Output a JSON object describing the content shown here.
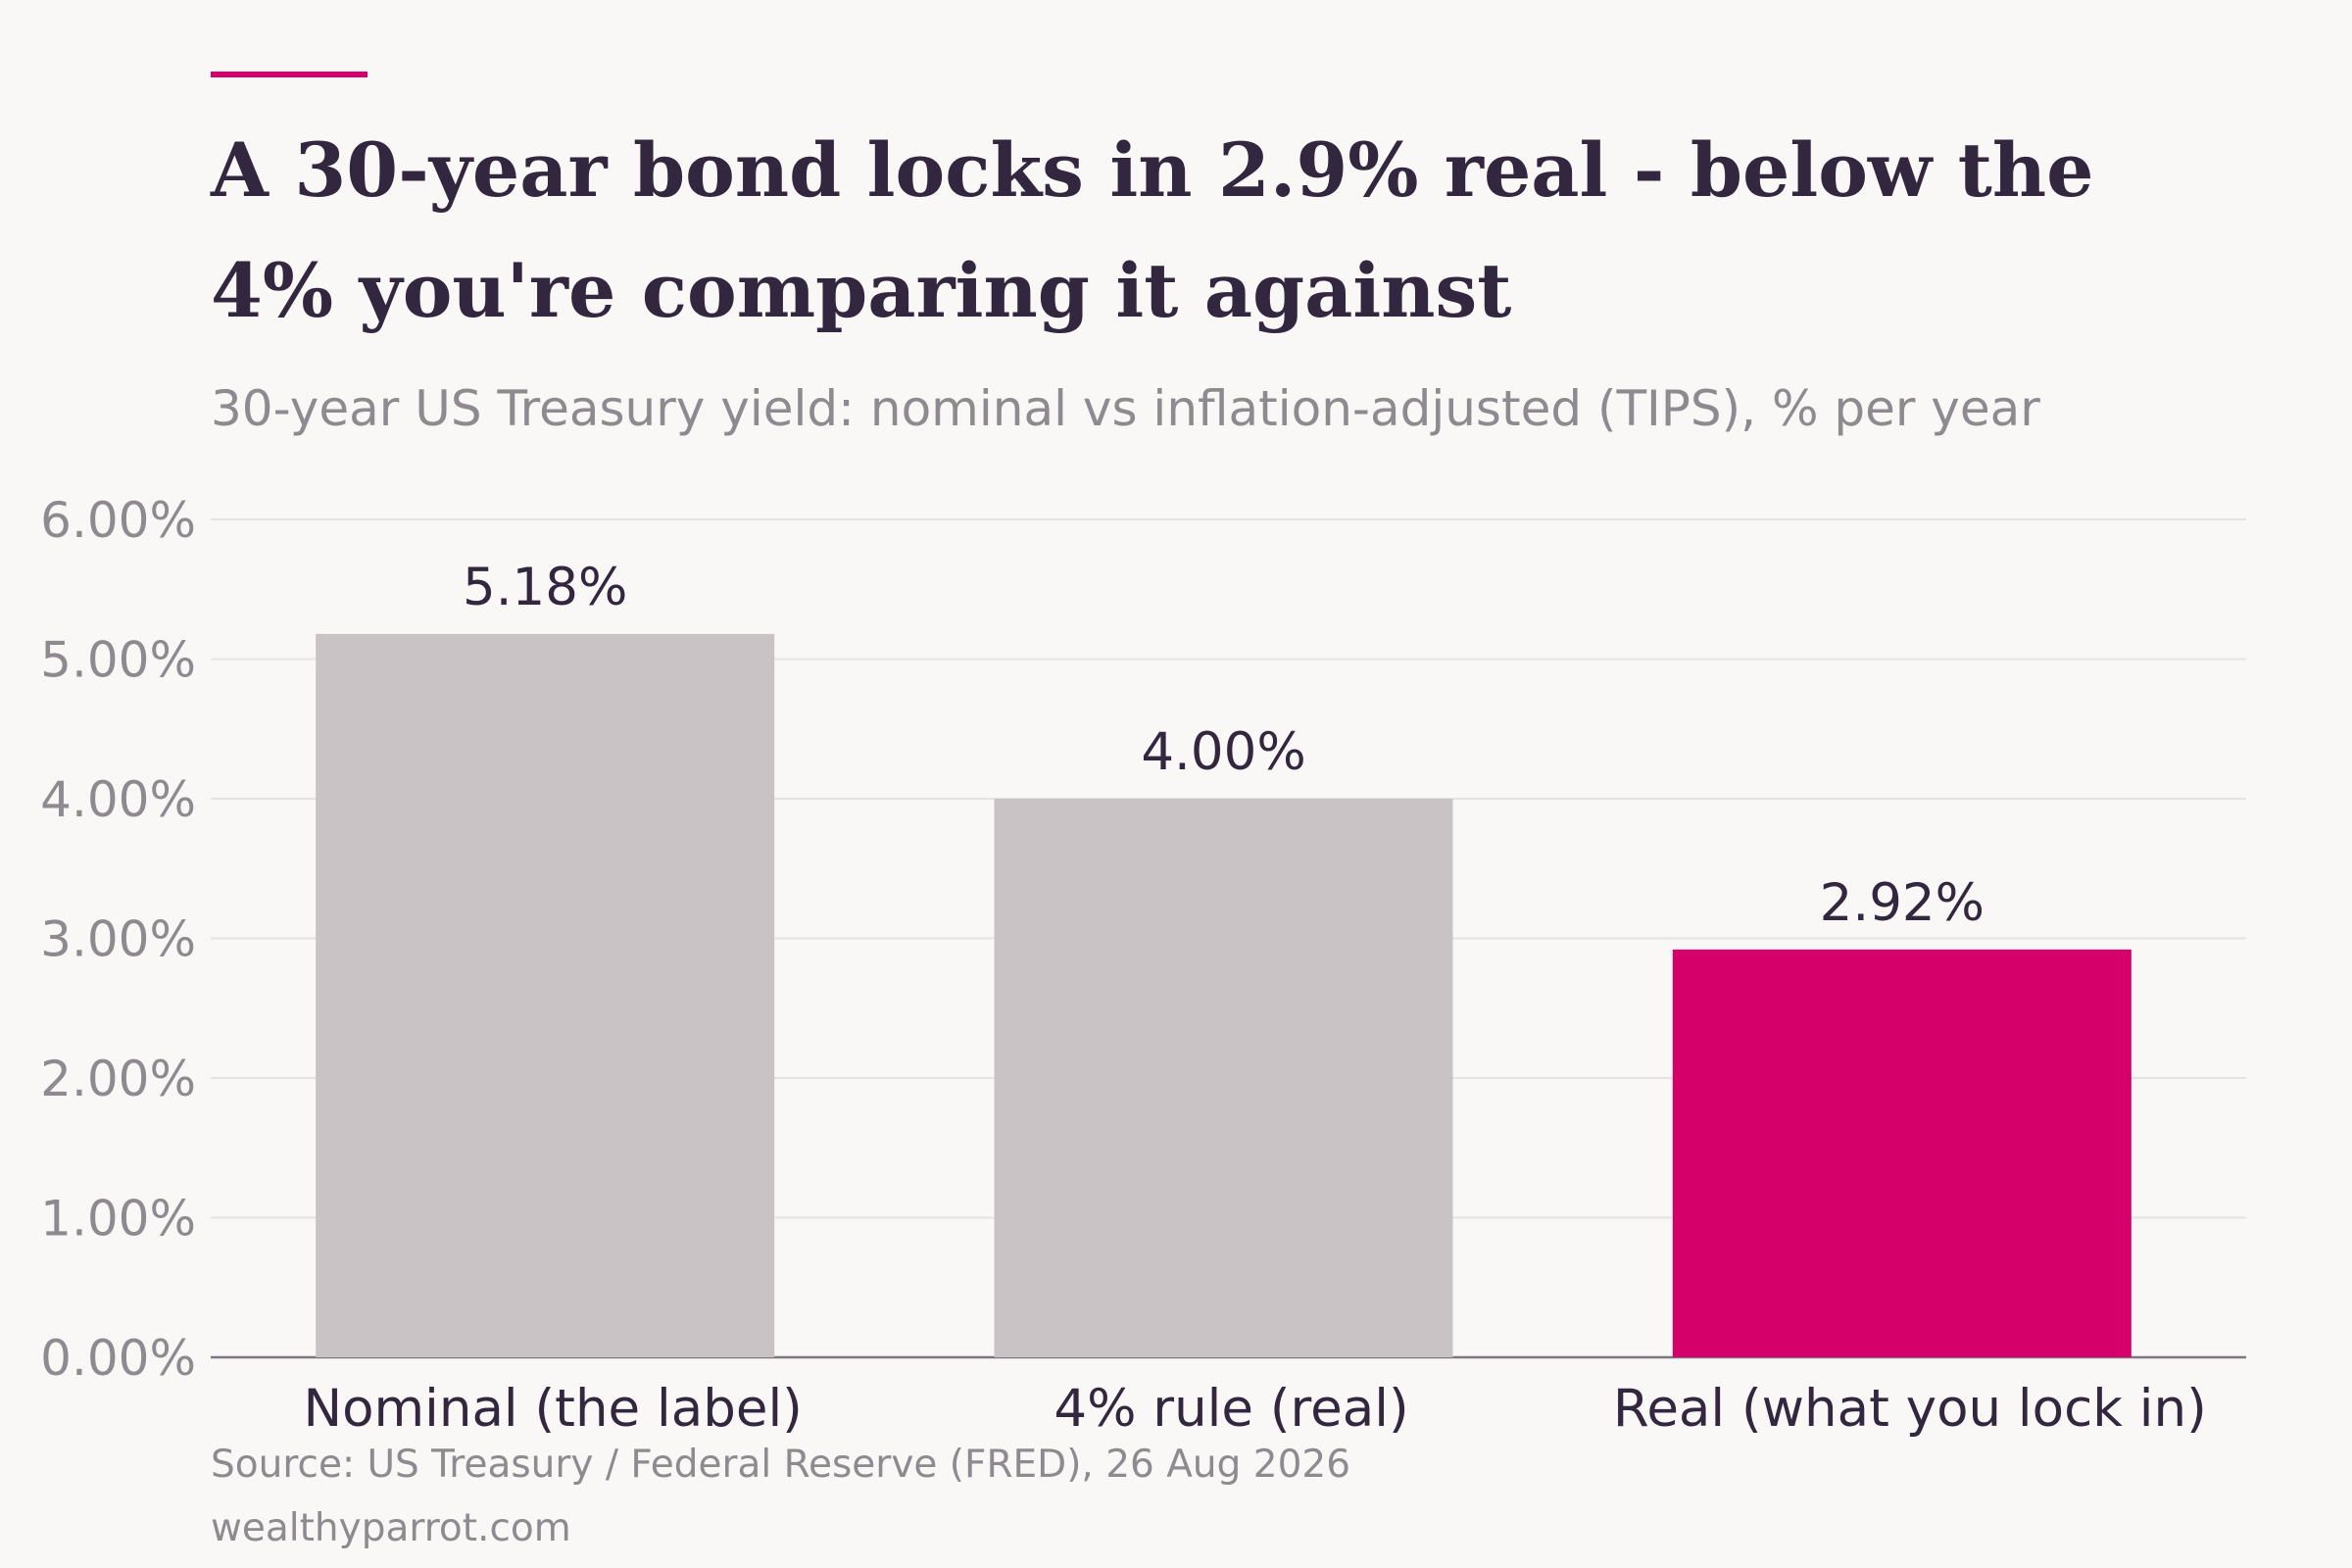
{
  "title": "A 30-year bond locks in 2.9% real - below the 4% you're comparing it against",
  "subtitle": "30-year US Treasury yield: nominal vs inflation-adjusted (TIPS), % per year",
  "source": "Source: US Treasury / Federal Reserve (FRED), 26 Aug 2026",
  "brand": "wealthyparrot.com",
  "colors": {
    "accent": "#d6006b",
    "neutral_bar": "#c9c3c6",
    "text": "#33263f",
    "muted": "#8e8a8f"
  },
  "chart_data": {
    "type": "bar",
    "categories": [
      "Nominal (the label)",
      "4% rule (real)",
      "Real (what you lock in)"
    ],
    "values": [
      5.18,
      4.0,
      2.92
    ],
    "value_labels": [
      "5.18%",
      "4.00%",
      "2.92%"
    ],
    "highlight_index": 2,
    "ylim": [
      0,
      6
    ],
    "yticks": [
      0,
      1,
      2,
      3,
      4,
      5,
      6
    ],
    "ytick_labels": [
      "0.00%",
      "1.00%",
      "2.00%",
      "3.00%",
      "4.00%",
      "5.00%",
      "6.00%"
    ],
    "xlabel": "",
    "ylabel": "",
    "grid": true,
    "legend": "none"
  }
}
